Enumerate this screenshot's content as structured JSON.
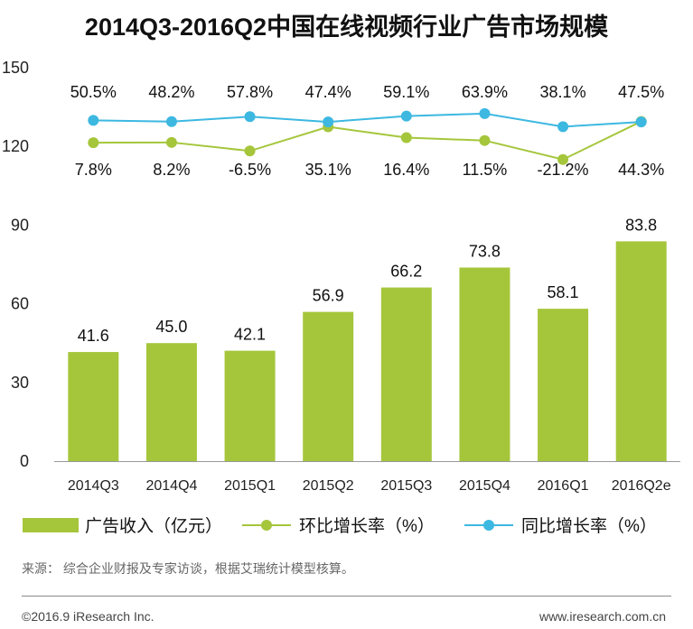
{
  "chart_data": {
    "type": "bar",
    "title": "2014Q3-2016Q2中国在线视频行业广告市场规模",
    "categories": [
      "2014Q3",
      "2014Q4",
      "2015Q1",
      "2015Q2",
      "2015Q3",
      "2015Q4",
      "2016Q1",
      "2016Q2e"
    ],
    "ylim": [
      0,
      150
    ],
    "yticks": [
      0,
      30,
      60,
      90,
      120,
      150
    ],
    "series": [
      {
        "name": "广告收入（亿元）",
        "type": "bar",
        "color": "#a5c63b",
        "values": [
          41.6,
          45.0,
          42.1,
          56.9,
          66.2,
          73.8,
          58.1,
          83.8
        ],
        "labels": [
          "41.6",
          "45.0",
          "42.1",
          "56.9",
          "66.2",
          "73.8",
          "58.1",
          "83.8"
        ]
      },
      {
        "name": "环比增长率（%）",
        "type": "line",
        "color": "#a5c63b",
        "values": [
          7.8,
          8.2,
          -6.5,
          35.1,
          16.4,
          11.5,
          -21.2,
          44.3
        ],
        "labels": [
          "7.8%",
          "8.2%",
          "-6.5%",
          "35.1%",
          "16.4%",
          "11.5%",
          "-21.2%",
          "44.3%"
        ]
      },
      {
        "name": "同比增长率（%）",
        "type": "line",
        "color": "#3cb8e1",
        "values": [
          50.5,
          48.2,
          57.8,
          47.4,
          59.1,
          63.9,
          38.1,
          47.5
        ],
        "labels": [
          "50.5%",
          "48.2%",
          "57.8%",
          "47.4%",
          "59.1%",
          "63.9%",
          "38.1%",
          "47.5%"
        ]
      }
    ],
    "legend_position": "bottom"
  },
  "footer": {
    "source": "来源： 综合企业财报及专家访谈，根据艾瑞统计模型核算。",
    "copyright": "©2016.9 iResearch Inc.",
    "website": "www.iresearch.com.cn"
  }
}
